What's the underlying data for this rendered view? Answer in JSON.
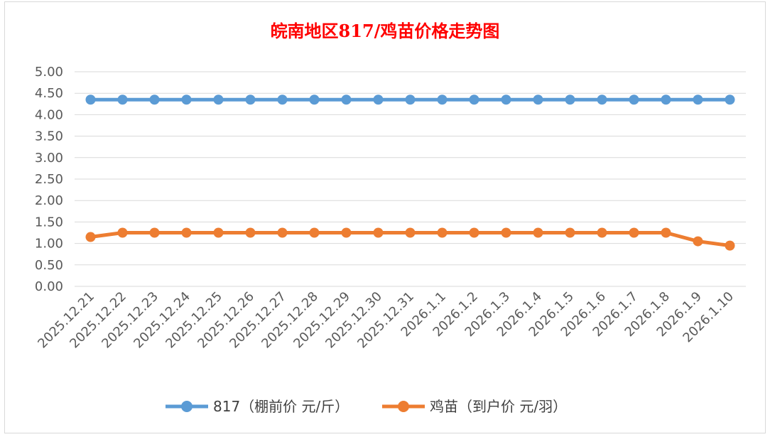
{
  "chart_data": {
    "type": "line",
    "title": "皖南地区817/鸡苗价格走势图",
    "categories": [
      "2025.12.21",
      "2025.12.22",
      "2025.12.23",
      "2025.12.24",
      "2025.12.25",
      "2025.12.26",
      "2025.12.27",
      "2025.12.28",
      "2025.12.29",
      "2025.12.30",
      "2025.12.31",
      "2026.1.1",
      "2026.1.2",
      "2026.1.3",
      "2026.1.4",
      "2026.1.5",
      "2026.1.6",
      "2026.1.7",
      "2026.1.8",
      "2026.1.9",
      "2026.1.10"
    ],
    "series": [
      {
        "name": "817（棚前价 元/斤）",
        "color": "#5b9bd5",
        "values": [
          4.35,
          4.35,
          4.35,
          4.35,
          4.35,
          4.35,
          4.35,
          4.35,
          4.35,
          4.35,
          4.35,
          4.35,
          4.35,
          4.35,
          4.35,
          4.35,
          4.35,
          4.35,
          4.35,
          4.35,
          4.35
        ]
      },
      {
        "name": "鸡苗（到户价 元/羽）",
        "color": "#ed7d31",
        "values": [
          1.15,
          1.25,
          1.25,
          1.25,
          1.25,
          1.25,
          1.25,
          1.25,
          1.25,
          1.25,
          1.25,
          1.25,
          1.25,
          1.25,
          1.25,
          1.25,
          1.25,
          1.25,
          1.25,
          1.05,
          0.95
        ]
      }
    ],
    "ylim": [
      0,
      5
    ],
    "yticks": [
      "0.00",
      "0.50",
      "1.00",
      "1.50",
      "2.00",
      "2.50",
      "3.00",
      "3.50",
      "4.00",
      "4.50",
      "5.00"
    ],
    "xlabel": "",
    "ylabel": "",
    "grid": true,
    "legend": "bottom"
  }
}
